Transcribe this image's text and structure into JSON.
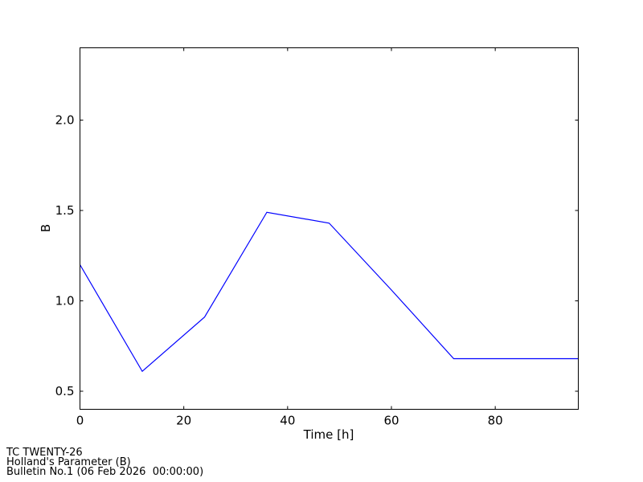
{
  "chart_data": {
    "type": "line",
    "xlabel": "Time [h]",
    "ylabel": "B",
    "xlim": [
      0,
      96
    ],
    "ylim": [
      0.4,
      2.4
    ],
    "x_ticks": [
      0,
      20,
      40,
      60,
      80
    ],
    "y_ticks": [
      0.5,
      1.0,
      1.5,
      2.0
    ],
    "y_tick_labels": [
      "0.5",
      "1.0",
      "1.5",
      "2.0"
    ],
    "grid": false,
    "series": [
      {
        "color": "#0000ff",
        "x": [
          0,
          12,
          24,
          36,
          48,
          60,
          72,
          84,
          96
        ],
        "y": [
          1.2,
          0.61,
          0.91,
          1.49,
          1.43,
          1.06,
          0.68,
          0.68,
          0.68
        ]
      }
    ]
  },
  "footer": {
    "line1": "TC TWENTY-26",
    "line2": "Holland's Parameter (B)",
    "line3": "Bulletin No.1 (06 Feb 2026  00:00:00)"
  }
}
